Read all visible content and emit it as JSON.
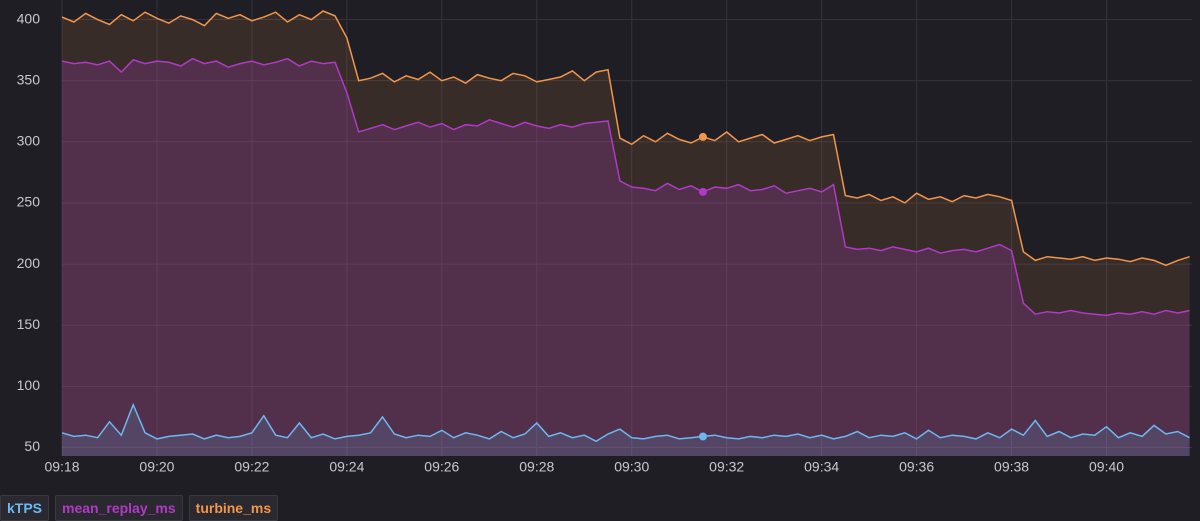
{
  "chart_data": {
    "type": "line",
    "x": [
      558,
      558.25,
      558.5,
      558.75,
      559,
      559.25,
      559.5,
      559.75,
      560,
      560.25,
      560.5,
      560.75,
      561,
      561.25,
      561.5,
      561.75,
      562,
      562.25,
      562.5,
      562.75,
      563,
      563.25,
      563.5,
      563.75,
      564,
      564.25,
      564.5,
      564.75,
      565,
      565.25,
      565.5,
      565.75,
      566,
      566.25,
      566.5,
      566.75,
      567,
      567.25,
      567.5,
      567.75,
      568,
      568.25,
      568.5,
      568.75,
      569,
      569.25,
      569.5,
      569.75,
      570,
      570.25,
      570.5,
      570.75,
      571,
      571.25,
      571.5,
      571.75,
      572,
      572.25,
      572.5,
      572.75,
      573,
      573.25,
      573.5,
      573.75,
      574,
      574.25,
      574.5,
      574.75,
      575,
      575.25,
      575.5,
      575.75,
      576,
      576.25,
      576.5,
      576.75,
      577,
      577.25,
      577.5,
      577.75,
      578,
      578.25,
      578.5,
      578.75,
      579,
      579.25,
      579.5,
      579.75,
      580,
      580.25,
      580.5,
      580.75,
      581,
      581.25,
      581.5,
      581.75
    ],
    "series": [
      {
        "name": "kTPS",
        "color": "#6cb8f0",
        "values": [
          62,
          59,
          60,
          58,
          71,
          60,
          85,
          62,
          57,
          59,
          60,
          61,
          57,
          60,
          58,
          59,
          62,
          76,
          60,
          58,
          70,
          58,
          61,
          57,
          59,
          60,
          62,
          75,
          61,
          58,
          60,
          59,
          64,
          58,
          62,
          60,
          57,
          63,
          58,
          61,
          70,
          59,
          62,
          58,
          60,
          55,
          61,
          65,
          58,
          57,
          59,
          60,
          57,
          58,
          59,
          60,
          58,
          57,
          59,
          58,
          60,
          59,
          61,
          58,
          60,
          57,
          59,
          63,
          58,
          60,
          59,
          62,
          57,
          64,
          58,
          60,
          59,
          57,
          62,
          58,
          65,
          60,
          72,
          59,
          63,
          58,
          61,
          60,
          67,
          58,
          62,
          59,
          68,
          61,
          63,
          58
        ]
      },
      {
        "name": "mean_replay_ms",
        "color": "#b03ac6",
        "values": [
          366,
          364,
          365,
          363,
          366,
          357,
          367,
          364,
          366,
          365,
          362,
          368,
          364,
          366,
          361,
          364,
          366,
          363,
          365,
          368,
          362,
          366,
          364,
          365,
          340,
          308,
          311,
          314,
          310,
          313,
          316,
          312,
          315,
          310,
          314,
          313,
          318,
          315,
          312,
          316,
          313,
          311,
          314,
          312,
          315,
          316,
          317,
          268,
          263,
          262,
          260,
          266,
          261,
          264,
          259,
          263,
          262,
          265,
          260,
          261,
          264,
          258,
          260,
          262,
          259,
          265,
          214,
          212,
          213,
          211,
          214,
          212,
          210,
          213,
          209,
          211,
          212,
          210,
          213,
          216,
          211,
          168,
          159,
          161,
          160,
          162,
          160,
          159,
          158,
          160,
          159,
          161,
          159,
          162,
          160,
          162
        ]
      },
      {
        "name": "turbine_ms",
        "color": "#f2964a",
        "values": [
          402,
          398,
          405,
          400,
          396,
          404,
          399,
          406,
          401,
          397,
          403,
          400,
          395,
          405,
          401,
          404,
          399,
          402,
          406,
          398,
          404,
          400,
          407,
          403,
          385,
          350,
          352,
          356,
          349,
          354,
          351,
          357,
          350,
          353,
          348,
          355,
          352,
          350,
          356,
          354,
          349,
          351,
          353,
          358,
          350,
          357,
          359,
          303,
          298,
          305,
          300,
          307,
          302,
          299,
          304,
          301,
          308,
          300,
          303,
          306,
          299,
          302,
          305,
          301,
          304,
          306,
          256,
          254,
          257,
          252,
          255,
          250,
          258,
          253,
          255,
          251,
          256,
          254,
          257,
          255,
          252,
          210,
          203,
          206,
          205,
          204,
          206,
          203,
          205,
          204,
          202,
          205,
          203,
          199,
          203,
          206
        ]
      }
    ],
    "xlim": [
      558,
      581.8
    ],
    "xticks": [
      {
        "value": 558,
        "label": "09:18"
      },
      {
        "value": 560,
        "label": "09:20"
      },
      {
        "value": 562,
        "label": "09:22"
      },
      {
        "value": 564,
        "label": "09:24"
      },
      {
        "value": 566,
        "label": "09:26"
      },
      {
        "value": 568,
        "label": "09:28"
      },
      {
        "value": 570,
        "label": "09:30"
      },
      {
        "value": 572,
        "label": "09:32"
      },
      {
        "value": 574,
        "label": "09:34"
      },
      {
        "value": 576,
        "label": "09:36"
      },
      {
        "value": 578,
        "label": "09:38"
      },
      {
        "value": 580,
        "label": "09:40"
      }
    ],
    "ylim": [
      43,
      416
    ],
    "yticks": [
      50,
      100,
      150,
      200,
      250,
      300,
      350,
      400
    ],
    "grid": true,
    "legend": "bottom",
    "hover_x": 571.5
  }
}
